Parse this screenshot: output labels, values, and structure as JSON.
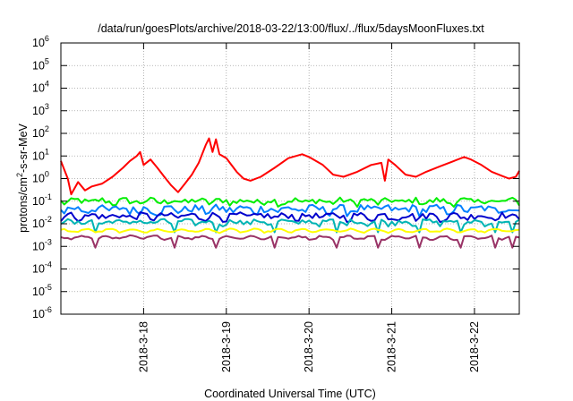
{
  "chart_data": {
    "type": "line",
    "title": "/data/run/goesPlots/archive/2018-03-22/13:00/flux/../flux/5daysMoonFluxes.txt",
    "xlabel": "Coordinated Universal Time (UTC)",
    "ylabel_parts": [
      "protons/cm",
      "2",
      "-s-sr-MeV"
    ],
    "y_scale": "log",
    "ylim": [
      1e-06,
      1000000.0
    ],
    "y_ticks": [
      {
        "base": "10",
        "exp": "-6",
        "value": 1e-06
      },
      {
        "base": "10",
        "exp": "-5",
        "value": 1e-05
      },
      {
        "base": "10",
        "exp": "-4",
        "value": 0.0001
      },
      {
        "base": "10",
        "exp": "-3",
        "value": 0.001
      },
      {
        "base": "10",
        "exp": "-2",
        "value": 0.01
      },
      {
        "base": "10",
        "exp": "-1",
        "value": 0.1
      },
      {
        "base": "10",
        "exp": "0",
        "value": 1
      },
      {
        "base": "10",
        "exp": "1",
        "value": 10
      },
      {
        "base": "10",
        "exp": "2",
        "value": 100
      },
      {
        "base": "10",
        "exp": "3",
        "value": 1000
      },
      {
        "base": "10",
        "exp": "4",
        "value": 10000
      },
      {
        "base": "10",
        "exp": "5",
        "value": 100000
      },
      {
        "base": "10",
        "exp": "6",
        "value": 1000000
      }
    ],
    "xlim": [
      "2018-03-17T00:00",
      "2018-03-22T13:00"
    ],
    "x_ticks": [
      {
        "label": "2018-3-18",
        "value": "2018-03-18T00:00"
      },
      {
        "label": "2018-3-19",
        "value": "2018-03-19T00:00"
      },
      {
        "label": "2018-3-20",
        "value": "2018-03-20T00:00"
      },
      {
        "label": "2018-3-21",
        "value": "2018-03-21T00:00"
      },
      {
        "label": "2018-3-22",
        "value": "2018-03-22T00:00"
      }
    ],
    "grid": true,
    "legend": "none",
    "series": [
      {
        "color": "#ff0000",
        "points": [
          [
            "2018-03-17T00:00",
            6
          ],
          [
            "2018-03-17T02:00",
            1.0
          ],
          [
            "2018-03-17T03:00",
            0.2
          ],
          [
            "2018-03-17T05:00",
            0.7
          ],
          [
            "2018-03-17T07:00",
            0.3
          ],
          [
            "2018-03-17T09:00",
            0.45
          ],
          [
            "2018-03-17T12:00",
            0.6
          ],
          [
            "2018-03-17T15:00",
            1.2
          ],
          [
            "2018-03-17T18:00",
            3
          ],
          [
            "2018-03-17T20:00",
            6
          ],
          [
            "2018-03-17T22:00",
            10
          ],
          [
            "2018-03-17T23:00",
            15
          ],
          [
            "2018-03-18T00:00",
            4
          ],
          [
            "2018-03-18T02:00",
            7
          ],
          [
            "2018-03-18T04:00",
            3
          ],
          [
            "2018-03-18T06:00",
            1.2
          ],
          [
            "2018-03-18T08:00",
            0.5
          ],
          [
            "2018-03-18T10:00",
            0.25
          ],
          [
            "2018-03-18T12:00",
            0.6
          ],
          [
            "2018-03-18T14:00",
            1.5
          ],
          [
            "2018-03-18T16:00",
            5
          ],
          [
            "2018-03-18T18:00",
            30
          ],
          [
            "2018-03-18T19:00",
            60
          ],
          [
            "2018-03-18T20:00",
            15
          ],
          [
            "2018-03-18T21:00",
            55
          ],
          [
            "2018-03-18T22:00",
            12
          ],
          [
            "2018-03-19T00:00",
            8
          ],
          [
            "2018-03-19T03:00",
            2
          ],
          [
            "2018-03-19T05:00",
            1.0
          ],
          [
            "2018-03-19T07:00",
            0.8
          ],
          [
            "2018-03-19T10:00",
            1.2
          ],
          [
            "2018-03-19T14:00",
            3
          ],
          [
            "2018-03-19T18:00",
            8
          ],
          [
            "2018-03-19T22:00",
            12
          ],
          [
            "2018-03-20T00:00",
            9
          ],
          [
            "2018-03-20T04:00",
            4
          ],
          [
            "2018-03-20T07:00",
            1.5
          ],
          [
            "2018-03-20T10:00",
            1.2
          ],
          [
            "2018-03-20T14:00",
            2
          ],
          [
            "2018-03-20T18:00",
            4
          ],
          [
            "2018-03-20T21:00",
            5
          ],
          [
            "2018-03-20T22:00",
            0.8
          ],
          [
            "2018-03-20T23:00",
            7
          ],
          [
            "2018-03-21T01:00",
            4
          ],
          [
            "2018-03-21T04:00",
            1.5
          ],
          [
            "2018-03-21T07:00",
            1.2
          ],
          [
            "2018-03-21T10:00",
            2
          ],
          [
            "2018-03-21T14:00",
            3.5
          ],
          [
            "2018-03-21T18:00",
            6
          ],
          [
            "2018-03-21T21:00",
            9
          ],
          [
            "2018-03-21T23:00",
            7
          ],
          [
            "2018-03-22T02:00",
            4
          ],
          [
            "2018-03-22T05:00",
            2
          ],
          [
            "2018-03-22T08:00",
            1.3
          ],
          [
            "2018-03-22T10:00",
            1.0
          ],
          [
            "2018-03-22T12:00",
            1.2
          ],
          [
            "2018-03-22T13:00",
            2.2
          ]
        ]
      },
      {
        "color": "#00ee00",
        "level": 0.1,
        "variation": 0.35,
        "dips": []
      },
      {
        "color": "#0080ff",
        "level": 0.045,
        "variation": 0.45,
        "dips": []
      },
      {
        "color": "#0000cc",
        "level": 0.022,
        "variation": 0.35,
        "dips": []
      },
      {
        "color": "#00b4b4",
        "level": 0.012,
        "variation": 0.25,
        "dips": [
          "2018-03-17T10:00",
          "2018-03-18T09:00",
          "2018-03-18T21:00",
          "2018-03-19T14:00",
          "2018-03-20T08:00",
          "2018-03-20T20:00",
          "2018-03-21T08:00",
          "2018-03-21T20:00",
          "2018-03-22T06:00",
          "2018-03-22T11:00"
        ]
      },
      {
        "color": "#ffff00",
        "level": 0.005,
        "variation": 0.08,
        "dips": []
      },
      {
        "color": "#993366",
        "level": 0.0025,
        "variation": 0.1,
        "dips": [
          "2018-03-17T10:00",
          "2018-03-18T09:00",
          "2018-03-18T21:00",
          "2018-03-19T14:00",
          "2018-03-20T08:00",
          "2018-03-20T20:00",
          "2018-03-21T08:00",
          "2018-03-21T20:00",
          "2018-03-22T06:00",
          "2018-03-22T11:00"
        ]
      }
    ]
  }
}
